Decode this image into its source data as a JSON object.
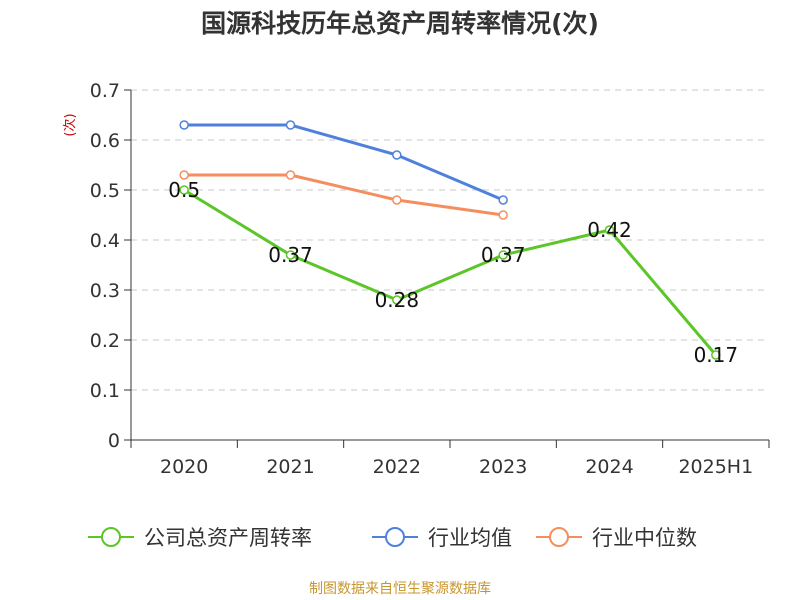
{
  "chart_data": {
    "type": "line",
    "title": "国源科技历年总资产周转率情况(次)",
    "ylabel": "(次)",
    "xlabel": "",
    "categories": [
      "2020",
      "2021",
      "2022",
      "2023",
      "2024",
      "2025H1"
    ],
    "ylim": [
      0,
      0.7
    ],
    "yticks": [
      "0",
      "0.1",
      "0.2",
      "0.3",
      "0.4",
      "0.5",
      "0.6",
      "0.7"
    ],
    "grid": true,
    "legend_position": "bottom",
    "series": [
      {
        "name": "公司总资产周转率",
        "color": "#5cc528",
        "values": [
          0.5,
          0.37,
          0.28,
          0.37,
          0.42,
          0.17
        ],
        "labels": [
          "0.5",
          "0.37",
          "0.28",
          "0.37",
          "0.42",
          "0.17"
        ]
      },
      {
        "name": "行业均值",
        "color": "#4f81dc",
        "values": [
          0.63,
          0.63,
          0.57,
          0.48,
          null,
          null
        ]
      },
      {
        "name": "行业中位数",
        "color": "#f58e5e",
        "values": [
          0.53,
          0.53,
          0.48,
          0.45,
          null,
          null
        ]
      }
    ]
  },
  "source": "制图数据来自恒生聚源数据库"
}
